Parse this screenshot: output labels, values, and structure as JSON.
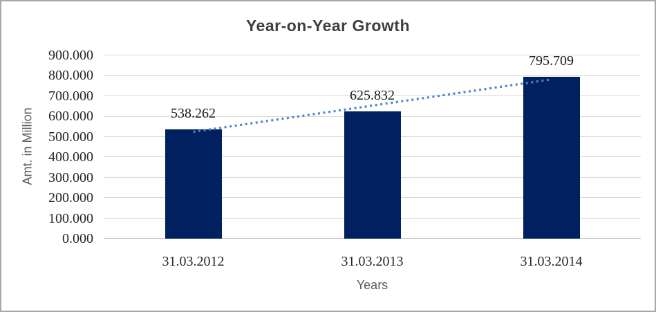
{
  "chart_data": {
    "type": "bar",
    "title": "Year-on-Year Growth",
    "xlabel": "Years",
    "ylabel": "Amt. in Million",
    "categories": [
      "31.03.2012",
      "31.03.2013",
      "31.03.2014"
    ],
    "values": [
      538.262,
      625.832,
      795.709
    ],
    "data_labels": [
      "538.262",
      "625.832",
      "795.709"
    ],
    "ylim": [
      0,
      900
    ],
    "ytick_values": [
      0,
      100,
      200,
      300,
      400,
      500,
      600,
      700,
      800,
      900
    ],
    "ytick_labels": [
      "0.000",
      "100.000",
      "200.000",
      "300.000",
      "400.000",
      "500.000",
      "600.000",
      "700.000",
      "800.000",
      "900.000"
    ],
    "grid": true,
    "legend": "none",
    "trendline": {
      "type": "linear",
      "style": "dotted",
      "color": "#4A86C8"
    },
    "colors": {
      "bar": "#002060",
      "gridline": "#D9D9D9",
      "axis_line": "#BFBFBF",
      "title": "#3F3F3F",
      "tick_label": "#262626",
      "axis_title": "#595959",
      "chart_border": "#A7A7A7",
      "background": "#FFFFFF"
    }
  }
}
